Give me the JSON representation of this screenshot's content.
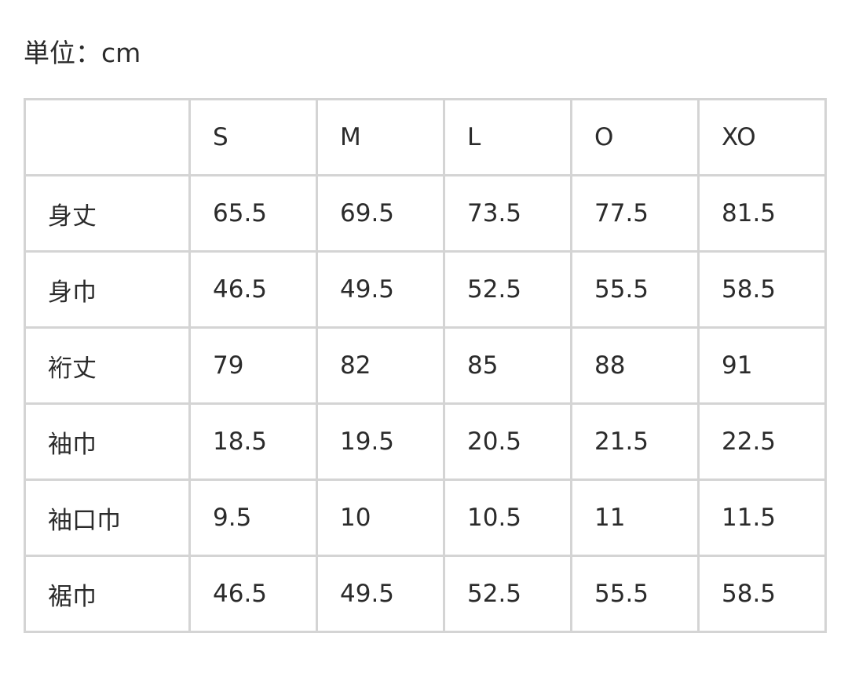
{
  "unit_label": "単位：cm",
  "table": {
    "headers": [
      "",
      "S",
      "M",
      "L",
      "O",
      "XO"
    ],
    "rows": [
      {
        "label": "身丈",
        "values": [
          "65.5",
          "69.5",
          "73.5",
          "77.5",
          "81.5"
        ]
      },
      {
        "label": "身巾",
        "values": [
          "46.5",
          "49.5",
          "52.5",
          "55.5",
          "58.5"
        ]
      },
      {
        "label": "裄丈",
        "values": [
          "79",
          "82",
          "85",
          "88",
          "91"
        ]
      },
      {
        "label": "袖巾",
        "values": [
          "18.5",
          "19.5",
          "20.5",
          "21.5",
          "22.5"
        ]
      },
      {
        "label": "袖口巾",
        "values": [
          "9.5",
          "10",
          "10.5",
          "11",
          "11.5"
        ]
      },
      {
        "label": "裾巾",
        "values": [
          "46.5",
          "49.5",
          "52.5",
          "55.5",
          "58.5"
        ]
      }
    ]
  }
}
